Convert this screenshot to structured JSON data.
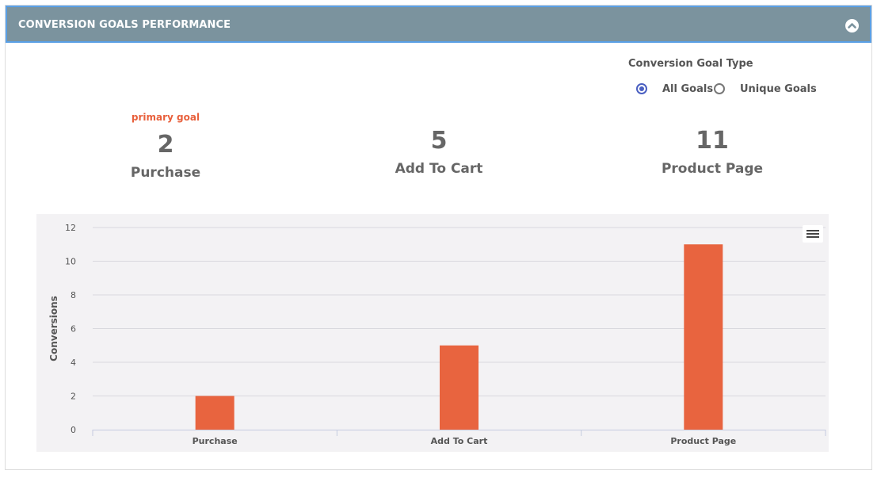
{
  "header": {
    "title": "CONVERSION GOALS PERFORMANCE"
  },
  "goal_type": {
    "label": "Conversion Goal Type",
    "options": [
      {
        "label": "All Goals",
        "checked": true
      },
      {
        "label": "Unique Goals",
        "checked": false
      }
    ]
  },
  "metrics": [
    {
      "tag": "primary goal",
      "value": "2",
      "label": "Purchase"
    },
    {
      "tag": "",
      "value": "5",
      "label": "Add To Cart"
    },
    {
      "tag": "",
      "value": "11",
      "label": "Product Page"
    }
  ],
  "colors": {
    "bar": "#e8643f",
    "header_bg": "#7b939e",
    "accent": "#e8603c",
    "radio": "#4a5fc1"
  },
  "icons": {
    "collapse": "chevron-up-circle-icon",
    "menu": "hamburger-menu-icon"
  },
  "chart_data": {
    "type": "bar",
    "title": "",
    "xlabel": "",
    "ylabel": "Conversions",
    "categories": [
      "Purchase",
      "Add To Cart",
      "Product Page"
    ],
    "values": [
      2,
      5,
      11
    ],
    "ylim": [
      0,
      12
    ],
    "yticks": [
      0,
      2,
      4,
      6,
      8,
      10,
      12
    ],
    "grid": true,
    "legend": "none"
  }
}
